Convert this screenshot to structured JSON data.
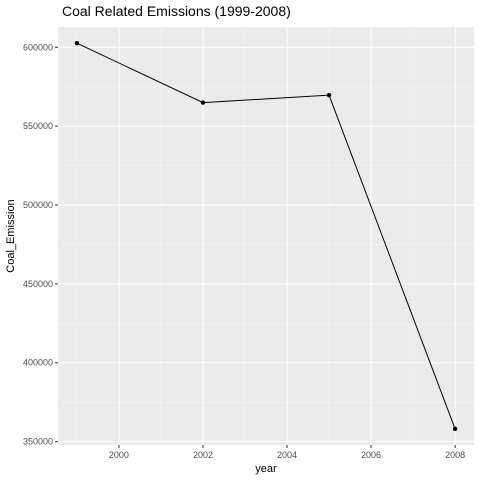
{
  "chart_data": {
    "type": "line",
    "title": "Coal Related Emissions (1999-2008)",
    "xlabel": "year",
    "ylabel": "Coal_Emission",
    "x": [
      1999,
      2002,
      2005,
      2008
    ],
    "series": [
      {
        "values": [
          602624,
          564935,
          569654,
          358083
        ]
      }
    ],
    "xlim": [
      1998.55,
      2008.45
    ],
    "ylim": [
      347850,
      612870
    ],
    "xticks": [
      2000,
      2002,
      2004,
      2006,
      2008
    ],
    "xtick_labels": [
      "2000",
      "2002",
      "2004",
      "2006",
      "2008"
    ],
    "xminor": [
      1999,
      2001,
      2003,
      2005,
      2007
    ],
    "yticks": [
      350000,
      400000,
      450000,
      500000,
      550000,
      600000
    ],
    "ytick_labels": [
      "350000",
      "400000",
      "450000",
      "500000",
      "550000",
      "600000"
    ],
    "yminor": [
      375000,
      425000,
      475000,
      525000,
      575000
    ],
    "grid": true,
    "panel_background": "#ebebeb",
    "line_color": "#000000",
    "point_color": "#000000"
  }
}
